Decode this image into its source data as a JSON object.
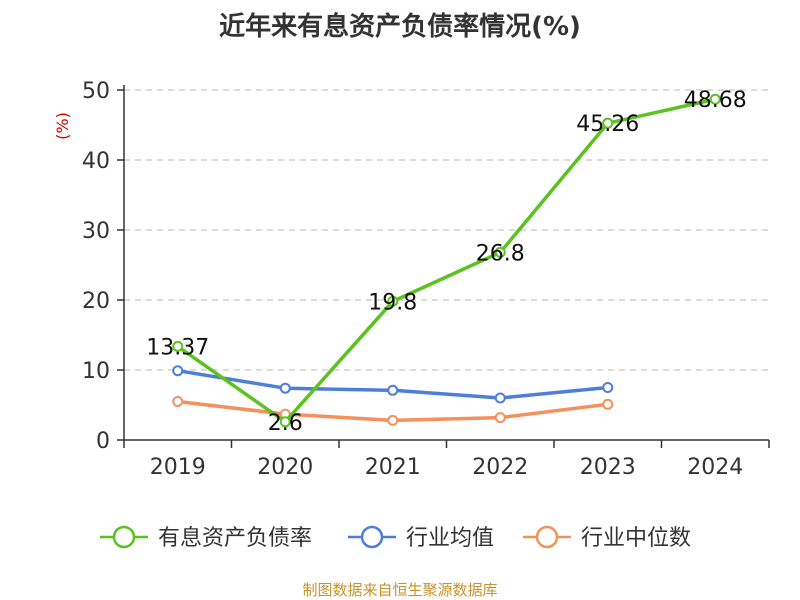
{
  "chart_data": {
    "type": "line",
    "title": "近年来有息资产负债率情况(%)",
    "ylabel": "(%)",
    "xlabel": "",
    "categories": [
      "2019",
      "2020",
      "2021",
      "2022",
      "2023",
      "2024"
    ],
    "ylim": [
      0,
      50
    ],
    "yticks": [
      0,
      10,
      20,
      30,
      40,
      50
    ],
    "grid": true,
    "legend_position": "bottom",
    "series": [
      {
        "name": "有息资产负债率",
        "color": "#5bc21f",
        "values": [
          13.37,
          2.6,
          19.8,
          26.8,
          45.26,
          48.68
        ],
        "labels": [
          "13.37",
          "2.6",
          "19.8",
          "26.8",
          "45.26",
          "48.68"
        ]
      },
      {
        "name": "行业均值",
        "color": "#4d7fd9",
        "values": [
          9.9,
          7.4,
          7.1,
          6.0,
          7.5,
          null
        ]
      },
      {
        "name": "行业中位数",
        "color": "#f4915b",
        "values": [
          5.5,
          3.7,
          2.8,
          3.2,
          5.1,
          null
        ]
      }
    ]
  },
  "source": "制图数据来自恒生聚源数据库"
}
